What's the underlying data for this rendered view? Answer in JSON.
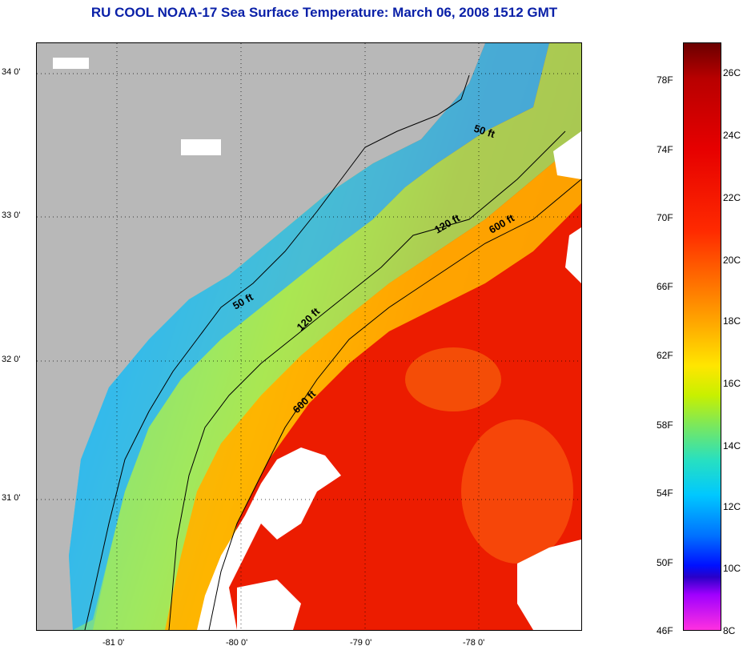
{
  "title": "RU COOL  NOAA-17  Sea Surface Temperature:  March 06, 2008 1512 GMT",
  "map": {
    "lat_labels": [
      "34 0'",
      "33 0'",
      "32 0'",
      "31 0'"
    ],
    "lon_labels": [
      "-81 0'",
      "-80 0'",
      "-79 0'",
      "-78 0'"
    ],
    "contour_labels": [
      "50 ft",
      "120 ft",
      "600 ft",
      "50 ft",
      "120 ft",
      "600 ft"
    ],
    "colors": {
      "land": "#b8b8b8",
      "cloud": "#ffffff",
      "cool_shelf": "#2aa8f0",
      "gulf_stream": "#e81800"
    }
  },
  "colorbar": {
    "fahrenheit_labels": [
      "78F",
      "74F",
      "70F",
      "66F",
      "62F",
      "58F",
      "54F",
      "50F",
      "46F"
    ],
    "celsius_labels": [
      "26C",
      "24C",
      "22C",
      "20C",
      "18C",
      "16C",
      "14C",
      "12C",
      "10C",
      "8C"
    ]
  }
}
